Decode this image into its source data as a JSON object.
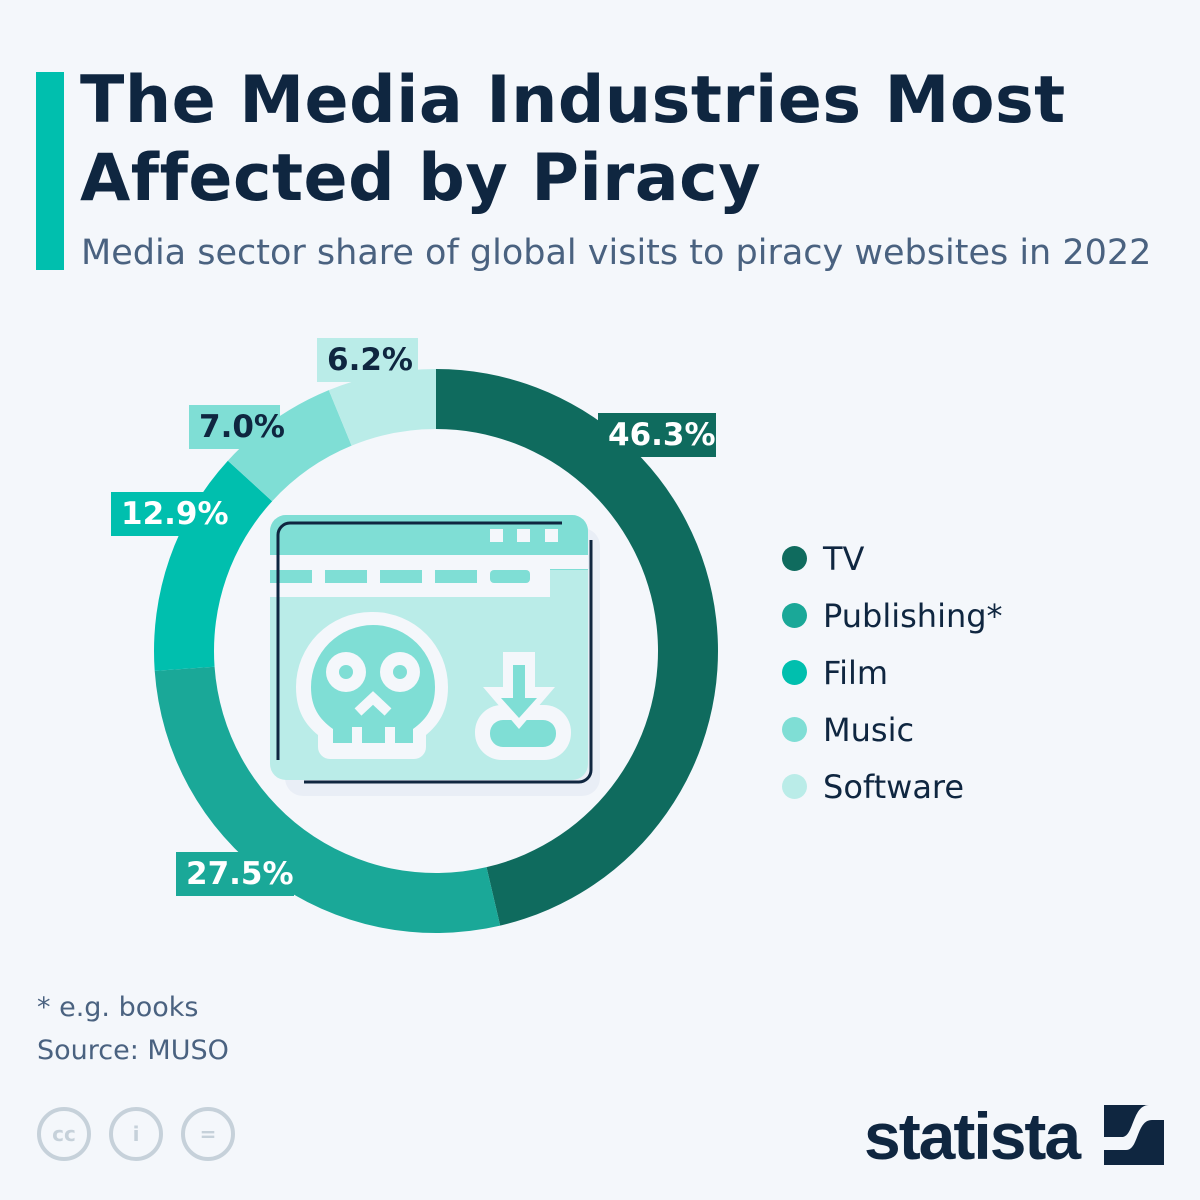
{
  "title": "The Media Industries Most Affected by Piracy",
  "subtitle": "Media sector share of global visits to piracy websites in 2022",
  "chart_data": {
    "type": "pie",
    "donut": true,
    "title": "The Media Industries Most Affected by Piracy",
    "subtitle": "Media sector share of global visits to piracy websites in 2022",
    "categories": [
      "TV",
      "Publishing*",
      "Film",
      "Music",
      "Software"
    ],
    "values": [
      46.3,
      27.5,
      12.9,
      7.0,
      6.2
    ],
    "labels": [
      "46.3%",
      "27.5%",
      "12.9%",
      "7.0%",
      "6.2%"
    ],
    "colors": [
      "#0f6b5e",
      "#1aa898",
      "#00bfae",
      "#7fded5",
      "#baece8"
    ],
    "legend_position": "right"
  },
  "footnote": "* e.g. books",
  "source": "Source: MUSO",
  "brand": "statista",
  "icons": [
    "cc-icon",
    "attribution-icon",
    "no-derivatives-icon",
    "piracy-browser-skull-icon"
  ]
}
